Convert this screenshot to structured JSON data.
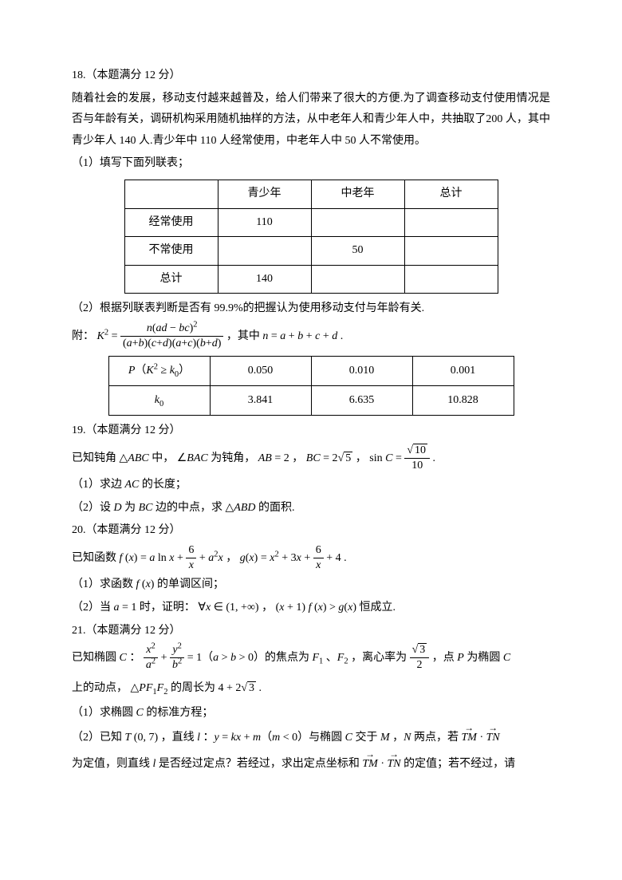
{
  "q18": {
    "header": "18.（本题满分 12 分）",
    "p1": "随着社会的发展，移动支付越来越普及，给人们带来了很大的方便.为了调查移动支付使用情况是否与年龄有关，调研机构采用随机抽样的方法，从中老年人和青少年人中，共抽取了200 人，其中青少年人 140 人.青少年中 110 人经常使用，中老年人中 50 人不常使用。",
    "sub1": "（1）填写下面列联表；",
    "table1": {
      "headers": [
        "",
        "青少年",
        "中老年",
        "总计"
      ],
      "rows": [
        [
          "经常使用",
          "110",
          "",
          ""
        ],
        [
          "不常使用",
          "",
          "50",
          ""
        ],
        [
          "总计",
          "140",
          "",
          ""
        ]
      ]
    },
    "sub2": "（2）根据列联表判断是否有 99.9%的把握认为使用移动支付与年龄有关.",
    "formula_prefix": "附：",
    "formula_where": "，其中",
    "table2": {
      "row1": [
        "0.050",
        "0.010",
        "0.001"
      ],
      "row2": [
        "3.841",
        "6.635",
        "10.828"
      ]
    }
  },
  "q19": {
    "header": "19.（本题满分 12 分）",
    "p1_a": "已知钝角",
    "p1_b": "中，",
    "p1_c": "为钝角，",
    "sub1_a": "（1）求边",
    "sub1_b": "的长度；",
    "sub2_a": "（2）设",
    "sub2_b": "为",
    "sub2_c": "边的中点，求",
    "sub2_d": "的面积."
  },
  "q20": {
    "header": "20.（本题满分 12 分）",
    "p1_a": "已知函数",
    "sub1_a": "（1）求函数",
    "sub1_b": "的单调区间；",
    "sub2_a": "（2）当",
    "sub2_b": "时，证明：",
    "sub2_c": "恒成立."
  },
  "q21": {
    "header": "21.（本题满分 12 分）",
    "p1_a": "已知椭圆",
    "p1_b": "的焦点为",
    "p1_c": "，离心率为",
    "p1_d": "，点",
    "p1_e": "为椭圆",
    "p2_a": "上的动点，",
    "p2_b": "的周长为",
    "sub1_a": "（1）求椭圆",
    "sub1_b": "的标准方程；",
    "sub2_a": "（2）已知",
    "sub2_b": "，直线",
    "sub2_c": "与椭圆",
    "sub2_d": "交于",
    "sub2_e": "两点，若",
    "p3_a": "为定值，则直线",
    "p3_b": "是否经过定点？若经过，求出定点坐标和",
    "p3_c": "的定值；若不经过，请"
  }
}
